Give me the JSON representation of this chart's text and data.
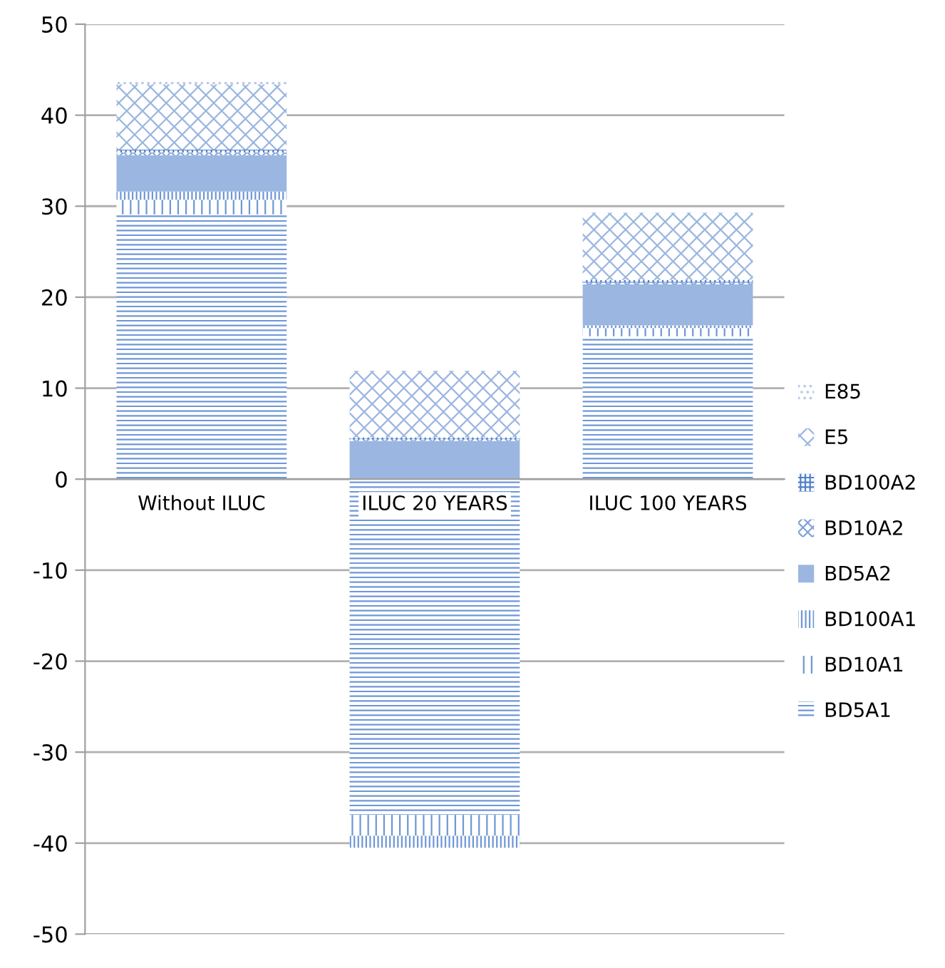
{
  "chart_data": {
    "type": "bar",
    "stacked": true,
    "categories": [
      "Without ILUC",
      "ILUC 20 YEARS",
      "ILUC 100 YEARS"
    ],
    "series": [
      {
        "name": "BD5A1",
        "color": "#6f97d6",
        "values": [
          29.1,
          -36.9,
          15.7
        ]
      },
      {
        "name": "BD10A1",
        "color": "#6f97d6",
        "values": [
          1.6,
          -2.3,
          0.9
        ]
      },
      {
        "name": "BD100A1",
        "color": "#6f97d6",
        "values": [
          0.9,
          -1.3,
          0.3
        ]
      },
      {
        "name": "BD5A2",
        "color": "#9bb6e0",
        "values": [
          4.0,
          4.2,
          4.5
        ]
      },
      {
        "name": "BD10A2",
        "color": "#7fa2da",
        "values": [
          0.3,
          0.2,
          0.2
        ]
      },
      {
        "name": "BD100A2",
        "color": "#4f7fc8",
        "values": [
          0.3,
          0.2,
          0.3
        ]
      },
      {
        "name": "E5",
        "color": "#9bb6e0",
        "values": [
          7.2,
          7.3,
          7.4
        ]
      },
      {
        "name": "E85",
        "color": "#b9cbea",
        "values": [
          0.3,
          0.0,
          0.2
        ]
      }
    ],
    "ylim": [
      -50,
      50
    ],
    "yticks": [
      -50,
      -40,
      -30,
      -20,
      -10,
      0,
      10,
      20,
      30,
      40,
      50
    ],
    "grid": "y",
    "legend": "right"
  }
}
